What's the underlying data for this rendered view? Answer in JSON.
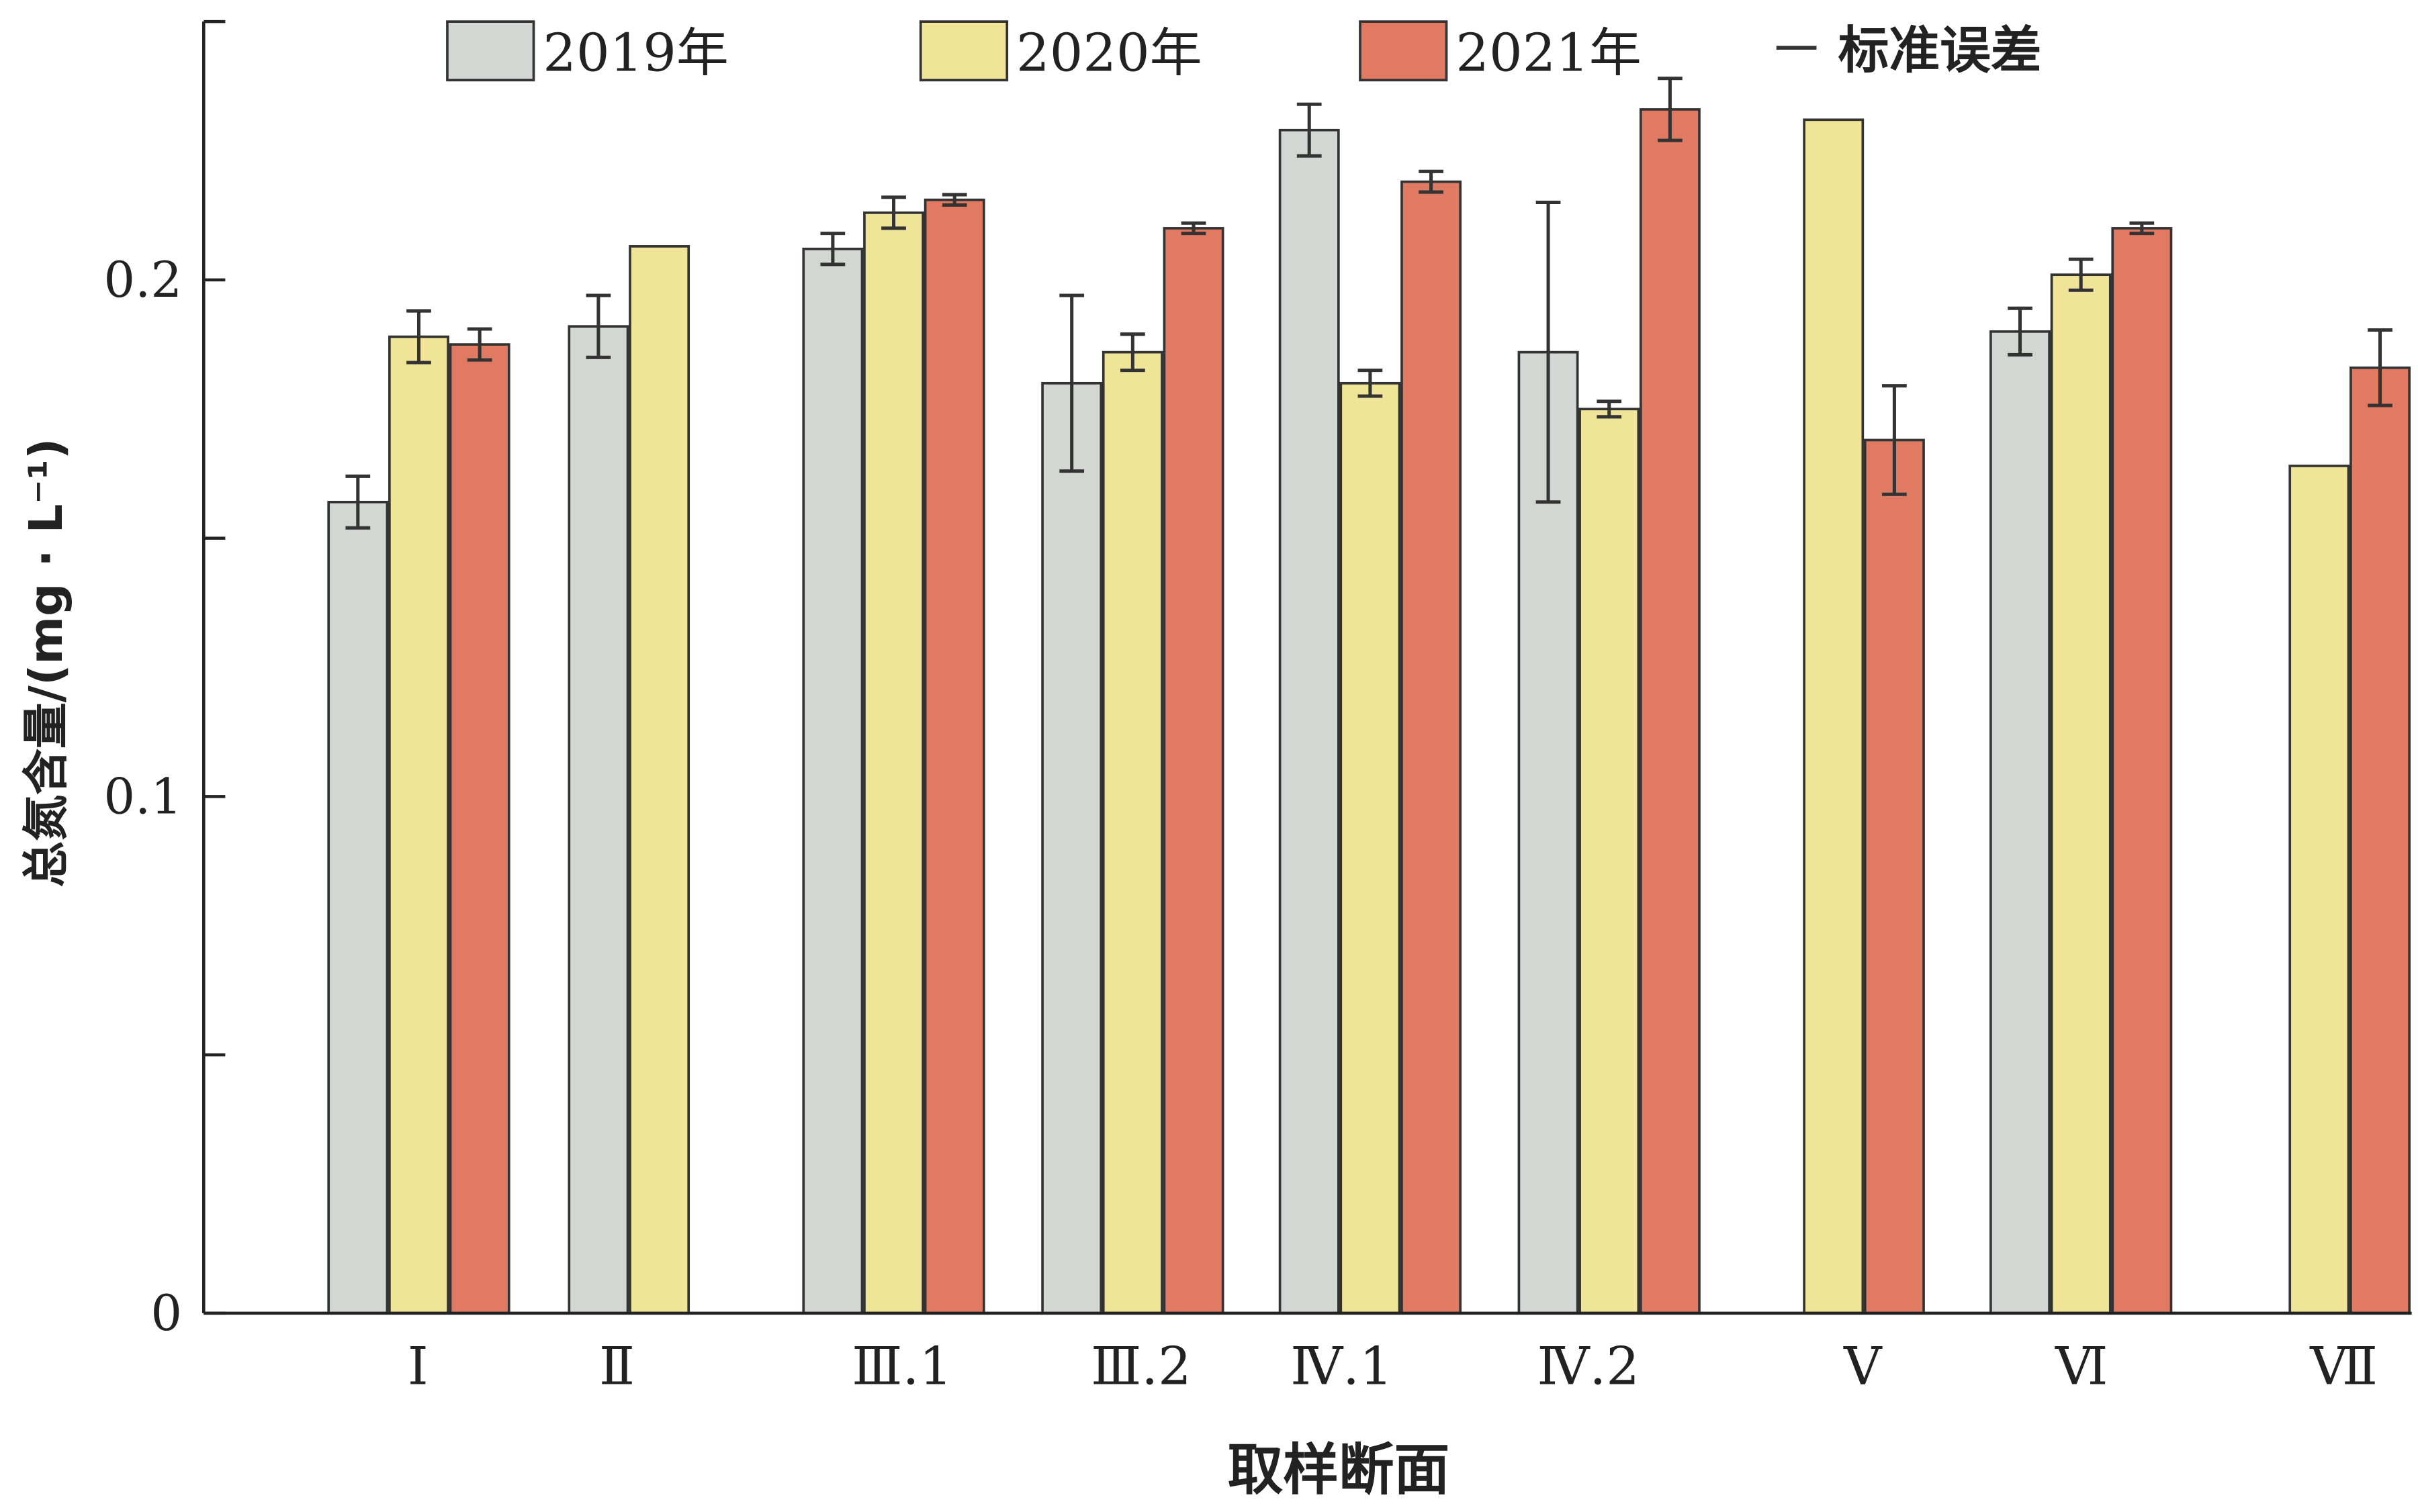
{
  "chart_data": {
    "type": "bar",
    "title": "",
    "xlabel": "取样断面",
    "ylabel": "总氮含量/(mg · L⁻¹)",
    "ylim": [
      0,
      0.25
    ],
    "yticks": [
      0,
      0.05,
      0.1,
      0.15,
      0.2
    ],
    "ytick_labels": [
      "0",
      "",
      "0.1",
      "",
      "0.2"
    ],
    "categories": [
      "Ⅰ",
      "Ⅱ",
      "Ⅲ.1",
      "Ⅲ.2",
      "Ⅳ.1",
      "Ⅳ.2",
      "Ⅴ",
      "Ⅵ",
      "Ⅶ"
    ],
    "legend_position": "top",
    "error_legend_label": "标准误差",
    "series": [
      {
        "name": "2019年",
        "color": "#d3d7d3",
        "values": [
          0.157,
          0.191,
          0.206,
          0.18,
          0.229,
          0.186,
          null,
          0.19,
          null
        ],
        "errors": [
          0.005,
          0.006,
          0.003,
          0.017,
          0.005,
          0.029,
          null,
          0.0045,
          null
        ]
      },
      {
        "name": "2020年",
        "color": "#f0e498",
        "values": [
          0.189,
          0.2065,
          0.213,
          0.186,
          0.18,
          0.175,
          0.231,
          0.201,
          0.164
        ],
        "errors": [
          0.005,
          null,
          0.003,
          0.0035,
          0.0025,
          0.0015,
          null,
          0.003,
          null
        ]
      },
      {
        "name": "2021年",
        "color": "#e07a62",
        "values": [
          0.1875,
          null,
          0.2155,
          0.21,
          0.219,
          0.233,
          0.169,
          0.21,
          0.183
        ],
        "errors": [
          0.003,
          null,
          0.001,
          0.001,
          0.002,
          0.006,
          0.0105,
          0.001,
          0.0073
        ]
      }
    ]
  }
}
